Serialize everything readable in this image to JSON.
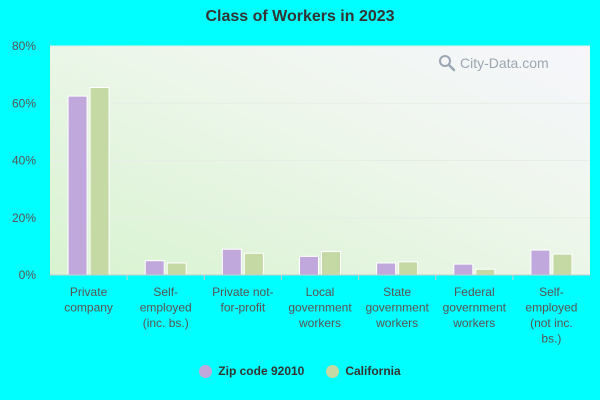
{
  "colors": {
    "series_1": "#c0a8dc",
    "series_2": "#c5d9a5",
    "axis_text": "#555555",
    "grid": "#e6eee6"
  },
  "watermark": {
    "text": "City-Data.com",
    "icon": "magnifier-icon"
  },
  "chart_data": {
    "type": "bar",
    "title": "Class of Workers in 2023",
    "xlabel": "",
    "ylabel": "",
    "ylim": [
      0,
      80
    ],
    "yticks": [
      0,
      20,
      40,
      60,
      80
    ],
    "ytick_labels": [
      "0%",
      "20%",
      "40%",
      "60%",
      "80%"
    ],
    "grid": true,
    "legend_position": "bottom",
    "categories": [
      "Private company",
      "Self-employed (inc. bs.)",
      "Private not-for-profit",
      "Local government workers",
      "State government workers",
      "Federal government workers",
      "Self-employed (not inc. bs.)"
    ],
    "category_label_lines": [
      [
        "Private",
        "company"
      ],
      [
        "Self-",
        "employed",
        "(inc. bs.)"
      ],
      [
        "Private not-",
        "for-profit"
      ],
      [
        "Local",
        "government",
        "workers"
      ],
      [
        "State",
        "government",
        "workers"
      ],
      [
        "Federal",
        "government",
        "workers"
      ],
      [
        "Self-",
        "employed",
        "(not inc.",
        "bs.)"
      ]
    ],
    "series": [
      {
        "name": "Zip code 92010",
        "values": [
          62.5,
          5.0,
          9.0,
          6.5,
          4.2,
          3.8,
          8.7
        ]
      },
      {
        "name": "California",
        "values": [
          65.5,
          4.2,
          7.6,
          8.2,
          4.6,
          2.0,
          7.3
        ]
      }
    ]
  }
}
